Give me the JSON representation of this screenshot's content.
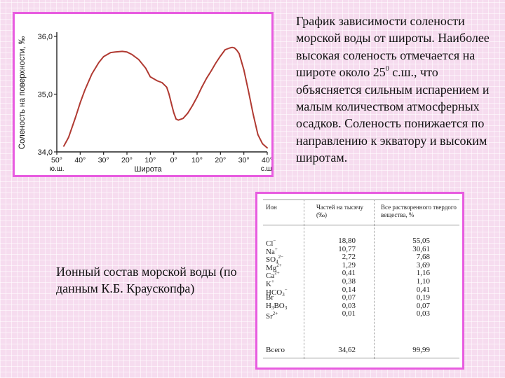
{
  "description": {
    "text_before": "График зависимости солености морской воды от широты. Наиболее высокая соленость отмечается на широте около 25",
    "superscript": "0",
    "text_after": " с.ш., что объясняется сильным испарением и малым количеством атмосферных осадков. Соленость понижается по направлению к экватору и высоким широтам."
  },
  "caption": "Ионный состав морской воды (по данным К.Б. Краускопфа)",
  "colors": {
    "curve": "#b03a32",
    "frame": "#e85ce0",
    "axis": "#222222"
  },
  "chart_data": {
    "type": "line",
    "title": "",
    "ylabel": "Соленость на поверхности, ‰",
    "xlabel": "Широта",
    "x_tick_labels": [
      "50°",
      "40°",
      "30°",
      "20°",
      "10°",
      "0°",
      "10°",
      "20°",
      "30°",
      "40°"
    ],
    "x_end_labels": {
      "left": "ю.ш.",
      "right": "с.ш."
    },
    "y_tick_labels": [
      "34,0",
      "35,0",
      "36,0"
    ],
    "ylim": [
      34.0,
      36.0
    ],
    "xlim": [
      -50,
      40
    ],
    "grid": false,
    "series": [
      {
        "x": [
          -47,
          -45,
          -42,
          -40,
          -38,
          -35,
          -32,
          -30,
          -27,
          -25,
          -22,
          -20,
          -18,
          -15,
          -12,
          -10,
          -7,
          -5,
          -3,
          -2,
          -1,
          0,
          1,
          2,
          4,
          6,
          8,
          10,
          12,
          14,
          16,
          18,
          20,
          22,
          24,
          25,
          26,
          27,
          28,
          30,
          32,
          34,
          36,
          38,
          40
        ],
        "y": [
          34.1,
          34.25,
          34.6,
          34.85,
          35.07,
          35.35,
          35.55,
          35.65,
          35.72,
          35.73,
          35.74,
          35.73,
          35.69,
          35.6,
          35.45,
          35.3,
          35.23,
          35.2,
          35.12,
          35.0,
          34.84,
          34.68,
          34.57,
          34.55,
          34.58,
          34.67,
          34.8,
          34.95,
          35.12,
          35.27,
          35.4,
          35.54,
          35.66,
          35.77,
          35.8,
          35.81,
          35.8,
          35.76,
          35.7,
          35.42,
          35.05,
          34.65,
          34.3,
          34.14,
          34.07
        ]
      }
    ]
  },
  "table": {
    "headers": {
      "ion": "Ион",
      "parts": "Частей на тысячу (‰)",
      "percent": "Все растворенного твердого вещества, %"
    },
    "rows": [
      {
        "ion": "Cl",
        "ion_sup": "−",
        "ion_sub": "",
        "parts": "18,80",
        "percent": "55,05"
      },
      {
        "ion": "Na",
        "ion_sup": "+",
        "ion_sub": "",
        "parts": "10,77",
        "percent": "30,61"
      },
      {
        "ion": "SO",
        "ion_sub": "4",
        "ion_sup": "2−",
        "parts": "2,72",
        "percent": "7,68"
      },
      {
        "ion": "Mg",
        "ion_sup": "2+",
        "ion_sub": "",
        "parts": "1,29",
        "percent": "3,69"
      },
      {
        "ion": "Ca",
        "ion_sup": "2+",
        "ion_sub": "",
        "parts": "0,41",
        "percent": "1,16"
      },
      {
        "ion": "K",
        "ion_sup": "+",
        "ion_sub": "",
        "parts": "0,38",
        "percent": "1,10"
      },
      {
        "ion": "HCO",
        "ion_sub": "3",
        "ion_sup": "−",
        "parts": "0,14",
        "percent": "0,41"
      },
      {
        "ion": "Br",
        "ion_sup": "",
        "ion_sub": "",
        "parts": "0,07",
        "percent": "0,19"
      },
      {
        "ion": "H",
        "ion_sub": "3",
        "ion_mid": "BO",
        "ion_sub2": "3",
        "ion_sup": "",
        "parts": "0,03",
        "percent": "0,07"
      },
      {
        "ion": "Sr",
        "ion_sup": "2+",
        "ion_sub": "",
        "parts": "0,01",
        "percent": "0,03"
      }
    ],
    "total": {
      "label": "Всего",
      "parts": "34,62",
      "percent": "99,99"
    }
  }
}
